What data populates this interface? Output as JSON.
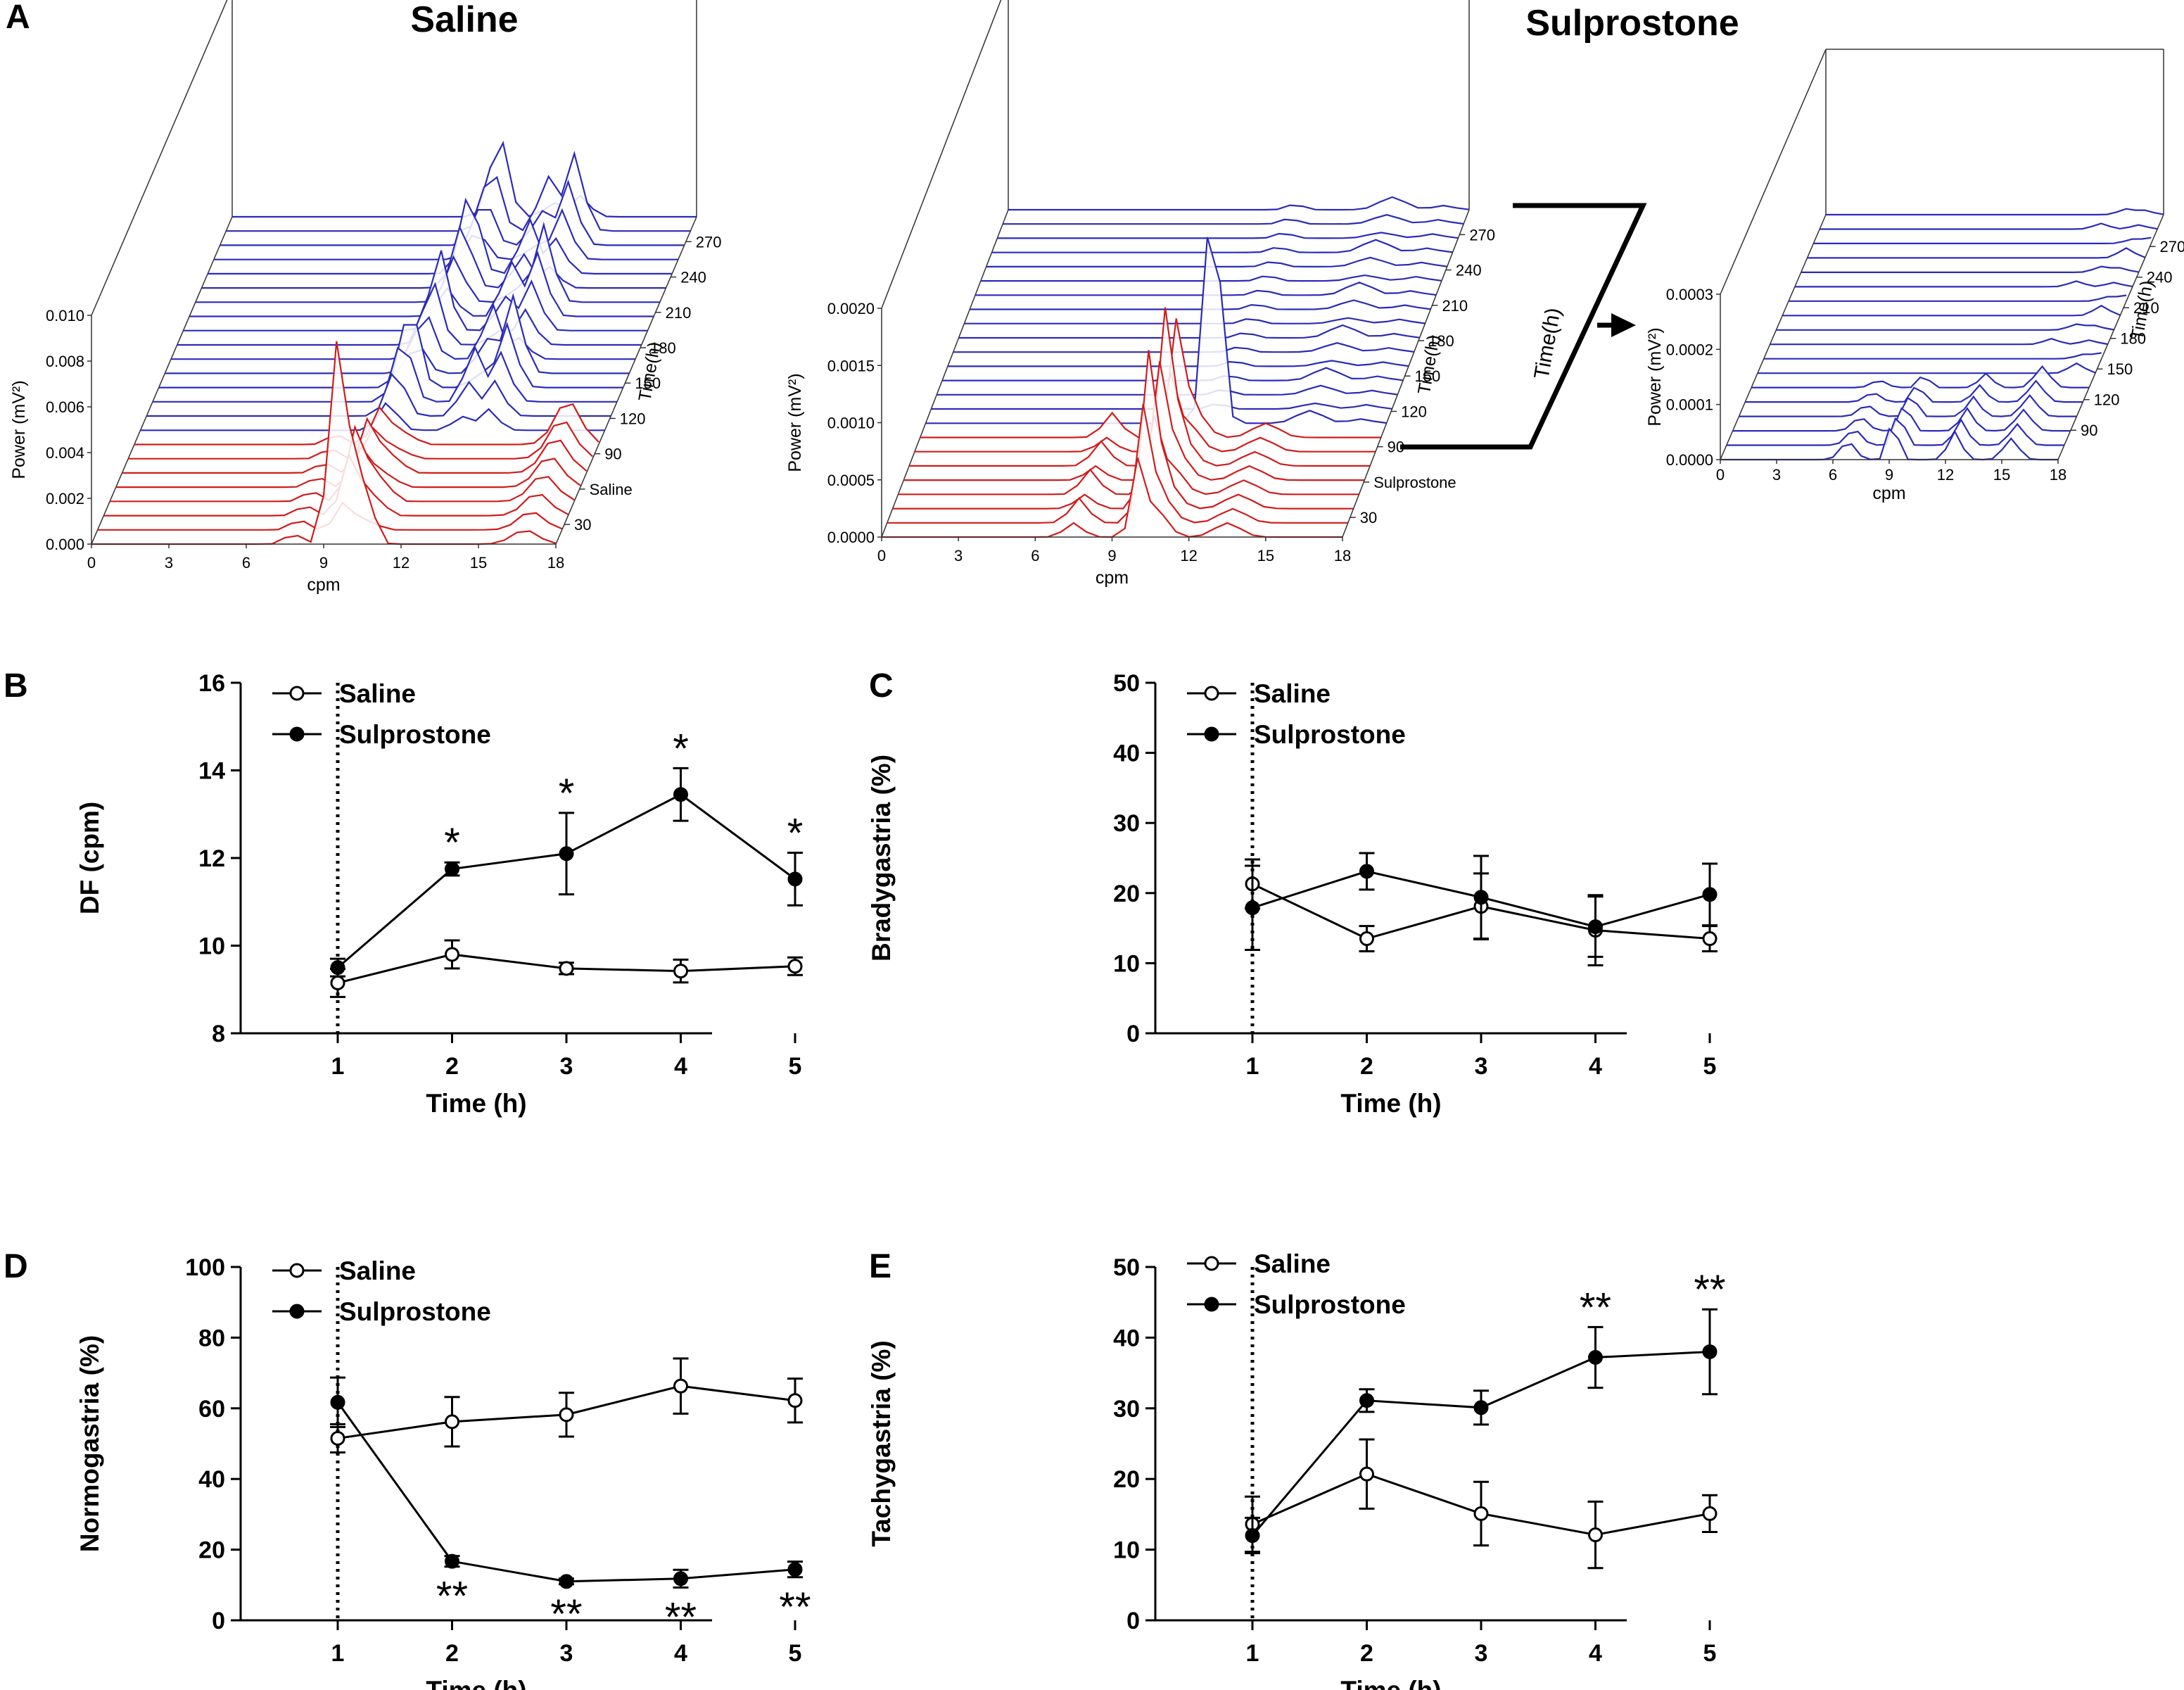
{
  "colors": {
    "saline_trace": "#d01c1c",
    "sulprostone_trace": "#2b2bb8",
    "axis": "#000000"
  },
  "panel_a": {
    "letter": "A",
    "saline": {
      "title": "Saline",
      "ylabel": "Power (mV²)",
      "xlabel": "cpm",
      "xticks": [
        "0",
        "3",
        "6",
        "9",
        "12",
        "15",
        "18"
      ],
      "yticks": [
        "0.000",
        "0.002",
        "0.004",
        "0.006",
        "0.008",
        "0.010"
      ],
      "time_label": "Time(h)",
      "time_ticks": [
        "30",
        "Saline",
        "90",
        "120",
        "150",
        "180",
        "210",
        "240",
        "270"
      ]
    },
    "sulprostone": {
      "title": "Sulprostone",
      "ylabel": "Power (mV²)",
      "xlabel": "cpm",
      "xticks": [
        "0",
        "3",
        "6",
        "9",
        "12",
        "15",
        "18"
      ],
      "yticks": [
        "0.0000",
        "0.0005",
        "0.0010",
        "0.0015",
        "0.0020"
      ],
      "time_label": "Time(h)",
      "time_ticks": [
        "30",
        "Sulprostone",
        "90",
        "120",
        "150",
        "180",
        "210",
        "240",
        "270"
      ]
    },
    "inset": {
      "ylabel": "Power (mV²)",
      "xlabel": "cpm",
      "xticks": [
        "0",
        "3",
        "6",
        "9",
        "12",
        "15",
        "18"
      ],
      "yticks": [
        "0.0000",
        "0.0001",
        "0.0002",
        "0.0003"
      ],
      "time_label": "Time(h)",
      "time_ticks": [
        "90",
        "120",
        "150",
        "180",
        "210",
        "240",
        "270"
      ]
    },
    "callout_label": "Time(h)"
  },
  "chart_data": [
    {
      "panel": "B",
      "type": "line",
      "x": [
        1,
        2,
        3,
        4,
        5
      ],
      "xlabel": "Time (h)",
      "ylabel": "DF (cpm)",
      "ylim": [
        8,
        16
      ],
      "yticks": [
        8,
        10,
        12,
        14,
        16
      ],
      "series": [
        {
          "name": "Saline",
          "marker": "open",
          "values": [
            9.15,
            9.8,
            9.48,
            9.42,
            9.53
          ],
          "errors": [
            0.32,
            0.32,
            0.13,
            0.26,
            0.2
          ]
        },
        {
          "name": "Sulprostone",
          "marker": "filled",
          "values": [
            9.5,
            11.75,
            12.1,
            13.45,
            11.52
          ],
          "errors": [
            0.2,
            0.15,
            0.93,
            0.6,
            0.6
          ]
        }
      ],
      "annotations": [
        {
          "x": 2,
          "text": "*",
          "pos": "above"
        },
        {
          "x": 3,
          "text": "*",
          "pos": "above"
        },
        {
          "x": 4,
          "text": "*",
          "pos": "above"
        },
        {
          "x": 5,
          "text": "*",
          "pos": "above"
        }
      ]
    },
    {
      "panel": "C",
      "type": "line",
      "x": [
        1,
        2,
        3,
        4,
        5
      ],
      "xlabel": "Time (h)",
      "ylabel": "Bradygastria (%)",
      "ylim": [
        0,
        50
      ],
      "yticks": [
        0,
        10,
        20,
        30,
        40,
        50
      ],
      "series": [
        {
          "name": "Saline",
          "marker": "open",
          "values": [
            21.3,
            13.5,
            18.1,
            14.7,
            13.5
          ],
          "errors": [
            3.5,
            1.8,
            4.7,
            5.0,
            1.8
          ]
        },
        {
          "name": "Sulprostone",
          "marker": "filled",
          "values": [
            17.9,
            23.1,
            19.4,
            15.2,
            19.8
          ],
          "errors": [
            6.0,
            2.6,
            5.9,
            4.3,
            4.4
          ]
        }
      ],
      "annotations": []
    },
    {
      "panel": "D",
      "type": "line",
      "x": [
        1,
        2,
        3,
        4,
        5
      ],
      "xlabel": "Time (h)",
      "ylabel": "Normogastria (%)",
      "ylim": [
        0,
        100
      ],
      "yticks": [
        0,
        20,
        40,
        60,
        80,
        100
      ],
      "series": [
        {
          "name": "Saline",
          "marker": "open",
          "values": [
            51.5,
            56.2,
            58.2,
            66.3,
            62.2
          ],
          "errors": [
            4.0,
            7.0,
            6.2,
            7.8,
            6.2
          ]
        },
        {
          "name": "Sulprostone",
          "marker": "filled",
          "values": [
            61.7,
            16.7,
            11.0,
            11.8,
            14.4
          ],
          "errors": [
            7.0,
            1.5,
            0.8,
            2.5,
            2.2
          ]
        }
      ],
      "annotations": [
        {
          "x": 2,
          "text": "**",
          "pos": "below"
        },
        {
          "x": 3,
          "text": "**",
          "pos": "below"
        },
        {
          "x": 4,
          "text": "**",
          "pos": "below"
        },
        {
          "x": 5,
          "text": "**",
          "pos": "below"
        }
      ]
    },
    {
      "panel": "E",
      "type": "line",
      "x": [
        1,
        2,
        3,
        4,
        5
      ],
      "xlabel": "Time (h)",
      "ylabel": "Tachygastria (%)",
      "ylim": [
        0,
        50
      ],
      "yticks": [
        0,
        10,
        20,
        30,
        40,
        50
      ],
      "series": [
        {
          "name": "Saline",
          "marker": "open",
          "values": [
            13.6,
            20.7,
            15.1,
            12.1,
            15.1
          ],
          "errors": [
            3.9,
            4.9,
            4.5,
            4.7,
            2.6
          ]
        },
        {
          "name": "Sulprostone",
          "marker": "filled",
          "values": [
            12.0,
            31.1,
            30.1,
            37.2,
            38.0
          ],
          "errors": [
            2.5,
            1.6,
            2.4,
            4.3,
            6.0
          ]
        }
      ],
      "annotations": [
        {
          "x": 4,
          "text": "**",
          "pos": "above"
        },
        {
          "x": 5,
          "text": "**",
          "pos": "above"
        }
      ]
    }
  ]
}
